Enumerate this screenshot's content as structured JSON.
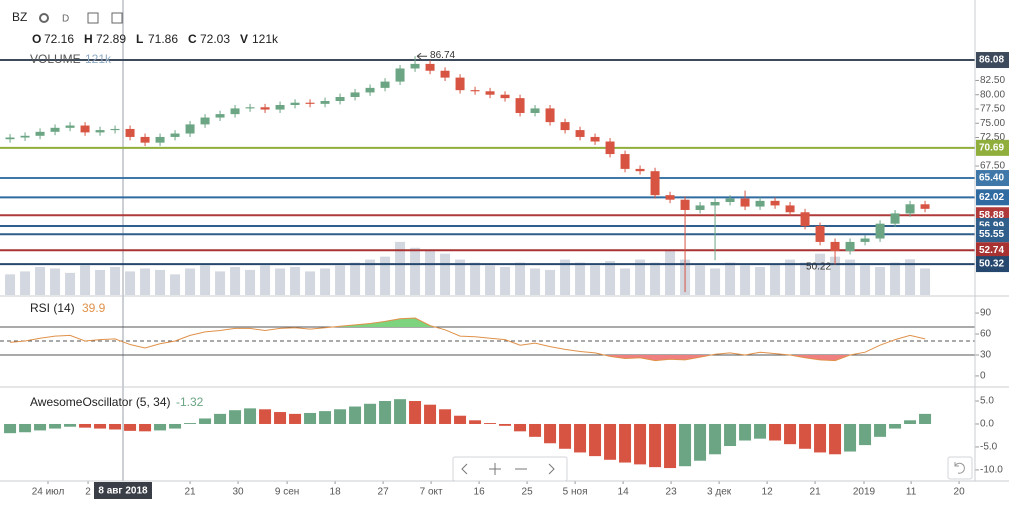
{
  "chart_data": [
    {
      "type": "candlestick",
      "symbol": "BZ",
      "interval": "D",
      "ohlc": [
        {
          "label": "O",
          "value": 72.16
        },
        {
          "label": "H",
          "value": 72.89
        },
        {
          "label": "L",
          "value": 71.86
        },
        {
          "label": "C",
          "value": 72.03
        }
      ],
      "volume_readout": {
        "label": "V",
        "value": "121k"
      },
      "volume_title": "VOLUME",
      "volume_value": "121k",
      "up_color": "#6ba583",
      "down_color": "#d75442",
      "volume_color": "#d3d8e0",
      "xlim": [
        -0.67,
        64.33
      ],
      "ylim": [
        44.9,
        96.6
      ],
      "volume_ylim": [
        0,
        1000
      ],
      "yticks": [
        {
          "value": 82.5,
          "label": "82.50"
        },
        {
          "value": 80,
          "label": "80.00"
        },
        {
          "value": 77.5,
          "label": "77.50"
        },
        {
          "value": 75,
          "label": "75.00"
        },
        {
          "value": 72.5,
          "label": "72.50"
        },
        {
          "value": 67.5,
          "label": "67.50"
        }
      ],
      "levels": [
        {
          "value": 86.08,
          "label": "86.08",
          "color": "#3d4a5c"
        },
        {
          "value": 70.69,
          "label": "70.69",
          "color": "#8fae3c"
        },
        {
          "value": 65.4,
          "label": "65.40",
          "color": "#3f78a8"
        },
        {
          "value": 62.02,
          "label": "62.02",
          "color": "#2f6aa0"
        },
        {
          "value": 58.88,
          "label": "58.88",
          "color": "#b03a3a"
        },
        {
          "value": 56.99,
          "label": "56.99",
          "color": "#2f5f8a"
        },
        {
          "value": 55.55,
          "label": "55.55",
          "color": "#2f5f8a"
        },
        {
          "value": 52.74,
          "label": "52.74",
          "color": "#a83232"
        },
        {
          "value": 50.32,
          "label": "50.32",
          "color": "#27486e"
        }
      ],
      "annotations": [
        {
          "text": "86.74",
          "value": 86.74,
          "index": 27
        },
        {
          "text": "50.22",
          "value": 50.22,
          "index": 55
        }
      ],
      "open": [
        72.2,
        72.5,
        72.8,
        73.5,
        74.2,
        74.6,
        73.4,
        73.8,
        74.0,
        72.6,
        71.6,
        72.6,
        73.2,
        74.8,
        76.0,
        76.6,
        77.6,
        77.8,
        77.4,
        78.2,
        78.6,
        78.4,
        78.9,
        79.6,
        80.4,
        81.2,
        82.3,
        84.6,
        85.4,
        84.2,
        83.0,
        80.8,
        80.6,
        80.0,
        79.4,
        76.8,
        77.6,
        75.2,
        73.8,
        72.6,
        71.8,
        69.6,
        67.0,
        66.6,
        62.4,
        61.6,
        59.8,
        60.6,
        61.2,
        61.8,
        60.4,
        61.4,
        60.6,
        59.4,
        57.0,
        54.2,
        52.6,
        54.2,
        54.8,
        57.4,
        59.2,
        60.8
      ],
      "high": [
        73.1,
        73.4,
        74.1,
        74.8,
        75.2,
        75.2,
        74.4,
        74.6,
        74.6,
        73.2,
        73.2,
        73.8,
        75.4,
        76.6,
        77.2,
        78.2,
        78.4,
        78.4,
        78.8,
        79.2,
        79.2,
        79.5,
        80.2,
        81.0,
        81.8,
        82.9,
        85.2,
        86.74,
        86.0,
        84.8,
        83.6,
        81.4,
        81.2,
        80.6,
        80.0,
        78.2,
        78.2,
        75.8,
        74.4,
        73.2,
        72.4,
        70.2,
        67.6,
        67.2,
        63.0,
        62.2,
        61.2,
        61.8,
        62.4,
        63.2,
        62.0,
        62.0,
        61.2,
        60.0,
        57.6,
        54.8,
        54.8,
        55.4,
        58.0,
        59.8,
        61.4,
        61.4
      ],
      "low": [
        71.6,
        71.9,
        72.2,
        72.9,
        73.6,
        72.8,
        72.8,
        73.2,
        72.0,
        71.0,
        71.0,
        72.0,
        72.6,
        74.2,
        75.4,
        76.0,
        77.0,
        76.8,
        76.8,
        77.6,
        77.8,
        77.8,
        78.3,
        79.0,
        79.8,
        80.6,
        81.7,
        84.0,
        83.6,
        82.4,
        80.2,
        80.0,
        79.4,
        78.8,
        76.2,
        76.2,
        74.6,
        73.2,
        72.0,
        71.2,
        69.0,
        66.4,
        66.0,
        61.8,
        61.0,
        45.4,
        59.2,
        51.0,
        60.6,
        59.8,
        59.8,
        60.0,
        58.8,
        56.4,
        53.6,
        50.22,
        52.0,
        53.6,
        54.2,
        56.8,
        58.6,
        59.4
      ],
      "close": [
        72.5,
        72.8,
        73.5,
        74.2,
        74.6,
        73.4,
        73.8,
        74.0,
        72.6,
        71.6,
        72.6,
        73.2,
        74.8,
        76.0,
        76.6,
        77.6,
        77.8,
        77.4,
        78.2,
        78.6,
        78.4,
        78.9,
        79.6,
        80.4,
        81.2,
        82.3,
        84.6,
        85.4,
        84.2,
        83.0,
        80.8,
        80.6,
        80.0,
        79.4,
        76.8,
        77.6,
        75.2,
        73.8,
        72.6,
        71.8,
        69.6,
        67.0,
        66.6,
        62.4,
        61.6,
        59.8,
        60.6,
        61.2,
        61.8,
        60.4,
        61.4,
        60.6,
        59.4,
        57.0,
        54.2,
        52.6,
        54.2,
        54.8,
        57.4,
        59.2,
        60.8,
        60.0
      ],
      "volume": [
        70,
        80,
        95,
        90,
        75,
        100,
        85,
        95,
        80,
        90,
        85,
        70,
        90,
        100,
        80,
        95,
        85,
        100,
        90,
        95,
        80,
        90,
        100,
        110,
        120,
        130,
        180,
        160,
        150,
        140,
        120,
        110,
        100,
        95,
        110,
        90,
        85,
        120,
        110,
        100,
        115,
        90,
        120,
        110,
        150,
        120,
        100,
        90,
        110,
        100,
        95,
        105,
        120,
        110,
        140,
        130,
        120,
        100,
        95,
        110,
        121,
        90
      ]
    },
    {
      "type": "line",
      "title": "RSI (14)",
      "value_readout": 39.9,
      "color": "#e0914a",
      "up_fill": "#7ed37e",
      "down_fill": "#f08080",
      "ylim": [
        -13,
        113
      ],
      "yticks": [
        90,
        60,
        30,
        0
      ],
      "bands": [
        {
          "value": 70,
          "dashed": false
        },
        {
          "value": 50,
          "dashed": true
        },
        {
          "value": 30,
          "dashed": false
        }
      ],
      "values": [
        48,
        50,
        54,
        57,
        58,
        50,
        52,
        53,
        45,
        40,
        46,
        50,
        58,
        63,
        65,
        68,
        68,
        65,
        68,
        69,
        67,
        69,
        71,
        73,
        75,
        78,
        82,
        83,
        72,
        66,
        57,
        56,
        54,
        52,
        44,
        47,
        42,
        38,
        35,
        33,
        28,
        25,
        26,
        22,
        24,
        23,
        27,
        31,
        33,
        30,
        34,
        32,
        30,
        26,
        23,
        22,
        30,
        34,
        44,
        52,
        58,
        53
      ]
    },
    {
      "type": "bar",
      "title": "AwesomeOscillator (5, 34)",
      "value_readout": -1.32,
      "up_color": "#6ba583",
      "down_color": "#d75442",
      "ylim": [
        -12.2,
        7.4
      ],
      "yticks": [
        {
          "value": 5,
          "label": "5.0"
        },
        {
          "value": 0,
          "label": "0.0"
        },
        {
          "value": -5,
          "label": "-5.0"
        },
        {
          "value": -10,
          "label": "-10.0"
        }
      ],
      "xticks": [
        {
          "value": 2.53,
          "label": "24 июл"
        },
        {
          "value": 5.2,
          "label": "2"
        },
        {
          "value": 12,
          "label": "21"
        },
        {
          "value": 15.2,
          "label": "30"
        },
        {
          "value": 18.47,
          "label": "9 сен"
        },
        {
          "value": 21.67,
          "label": "18"
        },
        {
          "value": 24.87,
          "label": "27"
        },
        {
          "value": 28.07,
          "label": "7 окт"
        },
        {
          "value": 31.27,
          "label": "16"
        },
        {
          "value": 34.47,
          "label": "25"
        },
        {
          "value": 37.67,
          "label": "5 ноя"
        },
        {
          "value": 40.87,
          "label": "14"
        },
        {
          "value": 44.07,
          "label": "23"
        },
        {
          "value": 47.27,
          "label": "3 дек"
        },
        {
          "value": 50.47,
          "label": "12"
        },
        {
          "value": 53.67,
          "label": "21"
        },
        {
          "value": 56.93,
          "label": "2019"
        },
        {
          "value": 60.07,
          "label": "11"
        },
        {
          "value": 63.27,
          "label": "20"
        }
      ],
      "crosshair": {
        "value": 7.53,
        "label": "8 авг 2018"
      },
      "values": [
        -2.0,
        -1.8,
        -1.4,
        -1.0,
        -0.6,
        -0.8,
        -1.0,
        -1.2,
        -1.5,
        -1.6,
        -1.4,
        -1.0,
        0.2,
        1.2,
        2.2,
        3.0,
        3.4,
        3.2,
        2.6,
        2.2,
        2.4,
        2.8,
        3.2,
        3.8,
        4.4,
        5.0,
        5.4,
        5.0,
        4.2,
        3.2,
        1.8,
        0.8,
        0.2,
        -0.4,
        -1.6,
        -2.8,
        -4.2,
        -5.4,
        -6.2,
        -7.0,
        -7.8,
        -8.4,
        -8.8,
        -9.4,
        -9.6,
        -9.2,
        -8.0,
        -6.6,
        -4.8,
        -3.6,
        -3.2,
        -3.6,
        -4.4,
        -5.4,
        -6.2,
        -6.6,
        -6.0,
        -4.6,
        -2.8,
        -1.0,
        0.8,
        2.2
      ]
    }
  ]
}
